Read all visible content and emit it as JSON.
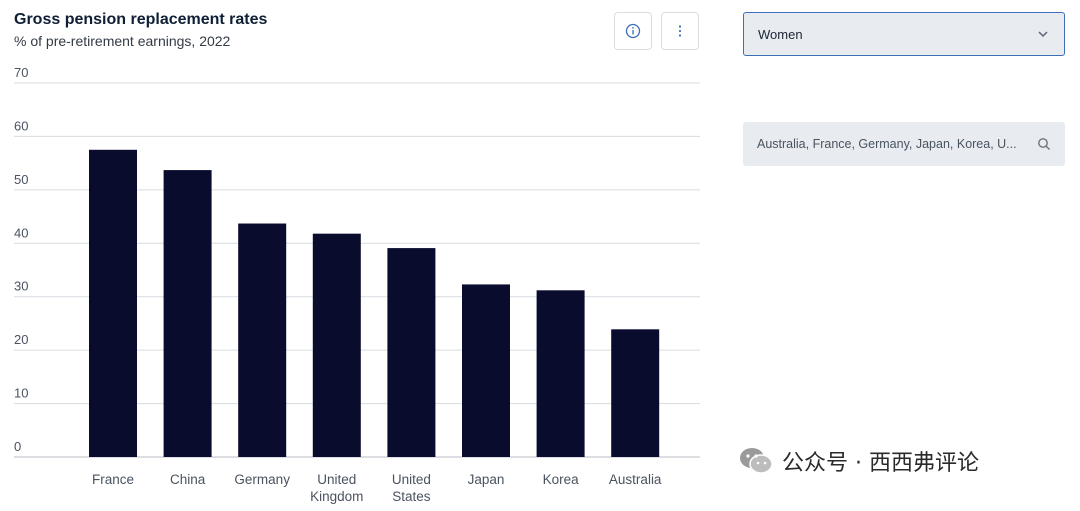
{
  "header": {
    "title": "Gross pension replacement rates",
    "subtitle": "% of pre-retirement earnings, 2022"
  },
  "toolbar": {
    "info_icon": "info-icon",
    "more_icon": "more-vertical-icon"
  },
  "controls": {
    "dropdown_value": "Women",
    "dropdown_icon": "chevron-down-icon",
    "search_value": "Australia, France, Germany, Japan, Korea, U...",
    "search_icon": "search-icon"
  },
  "watermark": {
    "text": "公众号 · 西西弗评论",
    "icon": "wechat-icon"
  },
  "colors": {
    "bar": "#0a0c2e",
    "grid": "#d7dbe0",
    "axis_text": "#4a5360",
    "accent": "#3b6fb8"
  },
  "chart_data": {
    "type": "bar",
    "categories": [
      "France",
      "China",
      "Germany",
      "United Kingdom",
      "United States",
      "Japan",
      "Korea",
      "Australia"
    ],
    "category_labels": [
      [
        "France"
      ],
      [
        "China"
      ],
      [
        "Germany"
      ],
      [
        "United",
        "Kingdom"
      ],
      [
        "United",
        "States"
      ],
      [
        "Japan"
      ],
      [
        "Korea"
      ],
      [
        "Australia"
      ]
    ],
    "values": [
      57.5,
      53.7,
      43.7,
      41.8,
      39.1,
      32.3,
      31.2,
      23.9
    ],
    "ylim": [
      0,
      70
    ],
    "yticks": [
      0,
      10,
      20,
      30,
      40,
      50,
      60,
      70
    ],
    "grid": true,
    "legend": "none"
  }
}
